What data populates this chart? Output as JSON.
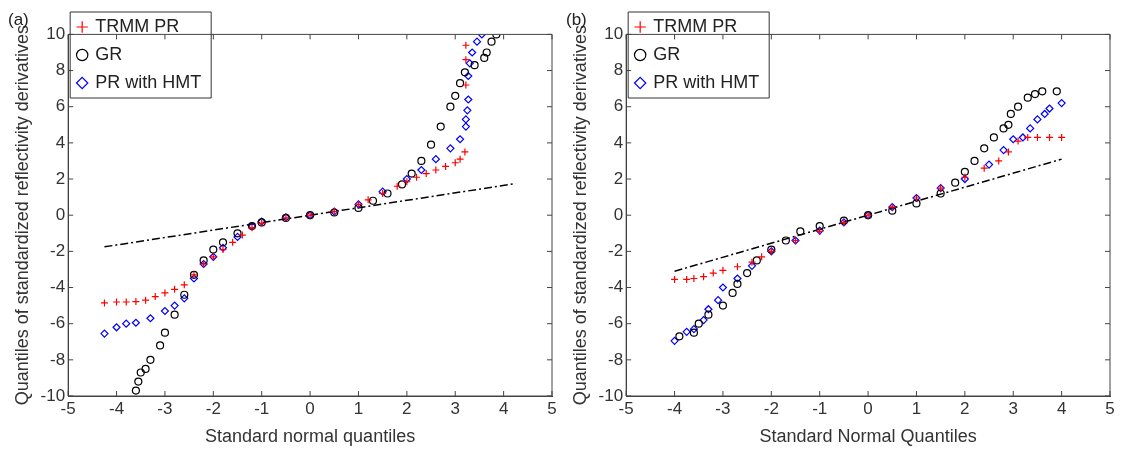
{
  "chart_data": [
    {
      "type": "scatter",
      "title": "(a)",
      "xlabel": "Standard normal quantiles",
      "ylabel": "Quantiles of standardized reflectivity derivatives",
      "xlim": [
        -5,
        5
      ],
      "ylim": [
        -10,
        10
      ],
      "xticks": [
        -5,
        -4,
        -3,
        -2,
        -1,
        0,
        1,
        2,
        3,
        4,
        5
      ],
      "yticks": [
        -10,
        -8,
        -6,
        -4,
        -2,
        0,
        2,
        4,
        6,
        8,
        10
      ],
      "legend": "top left",
      "series": [
        {
          "name": "TRMM PR",
          "type": "scatter",
          "marker": "cross",
          "color": "#ff0000",
          "x": [
            -4.25,
            -4.0,
            -3.8,
            -3.6,
            -3.4,
            -3.2,
            -3.0,
            -2.8,
            -2.6,
            -2.4,
            -2.2,
            -2.0,
            -1.8,
            -1.6,
            -1.4,
            -1.2,
            -1.0,
            -0.5,
            0,
            0.5,
            1.0,
            1.2,
            1.5,
            1.8,
            2.0,
            2.2,
            2.4,
            2.6,
            2.8,
            3.0,
            3.1,
            3.2,
            3.22,
            3.22,
            3.22
          ],
          "values": [
            -4.85,
            -4.8,
            -4.8,
            -4.78,
            -4.7,
            -4.5,
            -4.3,
            -4.1,
            -3.85,
            -3.3,
            -2.7,
            -2.3,
            -1.9,
            -1.5,
            -1.1,
            -0.7,
            -0.45,
            -0.15,
            0,
            0.2,
            0.6,
            0.85,
            1.2,
            1.6,
            1.85,
            2.1,
            2.3,
            2.5,
            2.7,
            2.9,
            3.1,
            3.5,
            7.2,
            8.6,
            9.4
          ]
        },
        {
          "name": "GR",
          "type": "scatter",
          "marker": "circle",
          "color": "#000000",
          "x": [
            -3.6,
            -3.55,
            -3.5,
            -3.4,
            -3.3,
            -3.1,
            -3.0,
            -2.8,
            -2.6,
            -2.4,
            -2.2,
            -2.0,
            -1.8,
            -1.5,
            -1.2,
            -1.0,
            -0.5,
            0,
            0.5,
            1.0,
            1.3,
            1.6,
            1.9,
            2.1,
            2.3,
            2.5,
            2.7,
            2.9,
            3.0,
            3.1,
            3.2,
            3.4,
            3.6,
            3.65,
            3.75,
            3.85
          ],
          "values": [
            -9.7,
            -9.2,
            -8.7,
            -8.5,
            -8.0,
            -7.2,
            -6.5,
            -5.5,
            -4.4,
            -3.3,
            -2.5,
            -1.9,
            -1.5,
            -1.0,
            -0.6,
            -0.4,
            -0.15,
            0,
            0.15,
            0.4,
            0.8,
            1.2,
            1.7,
            2.3,
            3.0,
            3.9,
            4.9,
            6.0,
            6.6,
            7.3,
            7.9,
            8.3,
            8.7,
            9.0,
            9.6,
            10.0
          ]
        },
        {
          "name": "PR with HMT",
          "type": "scatter",
          "marker": "diamond",
          "color": "#0000ff",
          "x": [
            -4.25,
            -4.0,
            -3.8,
            -3.6,
            -3.3,
            -3.0,
            -2.8,
            -2.6,
            -2.4,
            -2.2,
            -2.0,
            -1.8,
            -1.5,
            -1.2,
            -1.0,
            -0.5,
            0,
            0.5,
            1.0,
            1.5,
            2.0,
            2.3,
            2.6,
            2.9,
            3.1,
            3.22,
            3.22,
            3.25,
            3.27,
            3.27,
            3.3,
            3.35,
            3.45,
            3.55
          ],
          "values": [
            -6.55,
            -6.2,
            -6.0,
            -5.95,
            -5.7,
            -5.3,
            -5.0,
            -4.6,
            -3.5,
            -2.7,
            -2.3,
            -1.8,
            -1.2,
            -0.6,
            -0.35,
            -0.12,
            0,
            0.2,
            0.6,
            1.3,
            2.0,
            2.5,
            3.1,
            3.7,
            4.2,
            4.9,
            5.3,
            5.8,
            6.4,
            7.7,
            8.4,
            9.0,
            9.6,
            10.0
          ]
        },
        {
          "type": "line",
          "marker": "none",
          "line_style": "dashed",
          "color": "#000000",
          "x": [
            -4.25,
            4.25
          ],
          "values": [
            -1.75,
            1.75
          ]
        }
      ]
    },
    {
      "type": "scatter",
      "title": "(b)",
      "xlabel": "Standard Normal Quantiles",
      "ylabel": "Quantiles of standardized reflectivity derivatives",
      "xlim": [
        -5,
        5
      ],
      "ylim": [
        -10,
        10
      ],
      "xticks": [
        -5,
        -4,
        -3,
        -2,
        -1,
        0,
        1,
        2,
        3,
        4,
        5
      ],
      "yticks": [
        -10,
        -8,
        -6,
        -4,
        -2,
        0,
        2,
        4,
        6,
        8,
        10
      ],
      "legend": "top left",
      "series": [
        {
          "name": "TRMM PR",
          "type": "scatter",
          "marker": "cross",
          "color": "#ff0000",
          "x": [
            -4.0,
            -3.75,
            -3.6,
            -3.4,
            -3.2,
            -3.0,
            -2.7,
            -2.4,
            -2.2,
            -2.0,
            -1.5,
            -1.0,
            -0.5,
            0,
            0.5,
            1.0,
            1.5,
            2.0,
            2.4,
            2.7,
            2.9,
            3.1,
            3.3,
            3.5,
            3.75,
            4.0
          ],
          "values": [
            -3.55,
            -3.55,
            -3.5,
            -3.4,
            -3.2,
            -3.05,
            -2.85,
            -2.6,
            -2.3,
            -2.0,
            -1.4,
            -0.9,
            -0.4,
            0,
            0.45,
            0.95,
            1.5,
            2.1,
            2.6,
            3.0,
            3.5,
            4.1,
            4.3,
            4.3,
            4.3,
            4.3
          ]
        },
        {
          "name": "GR",
          "type": "scatter",
          "marker": "circle",
          "color": "#000000",
          "x": [
            -3.9,
            -3.6,
            -3.5,
            -3.3,
            -3.0,
            -2.8,
            -2.7,
            -2.5,
            -2.3,
            -2.0,
            -1.7,
            -1.4,
            -1.0,
            -0.5,
            0,
            0.5,
            1.0,
            1.5,
            1.8,
            2.0,
            2.2,
            2.4,
            2.6,
            2.8,
            2.9,
            2.95,
            3.1,
            3.3,
            3.45,
            3.6,
            3.9
          ],
          "values": [
            -6.7,
            -6.5,
            -6.0,
            -5.5,
            -5.0,
            -4.3,
            -3.8,
            -3.2,
            -2.5,
            -1.9,
            -1.4,
            -0.9,
            -0.6,
            -0.3,
            0,
            0.25,
            0.65,
            1.2,
            1.8,
            2.4,
            3.0,
            3.7,
            4.3,
            4.8,
            5.0,
            5.6,
            6.0,
            6.5,
            6.7,
            6.85,
            6.85
          ]
        },
        {
          "name": "PR with HMT",
          "type": "scatter",
          "marker": "diamond",
          "color": "#0000ff",
          "x": [
            -4.0,
            -3.75,
            -3.6,
            -3.4,
            -3.3,
            -3.1,
            -3.0,
            -2.7,
            -2.4,
            -2.0,
            -1.5,
            -1.0,
            -0.5,
            0,
            0.5,
            1.0,
            1.5,
            2.0,
            2.5,
            2.8,
            3.0,
            3.2,
            3.35,
            3.5,
            3.65,
            3.75,
            4.0
          ],
          "values": [
            -6.95,
            -6.45,
            -6.3,
            -5.8,
            -5.2,
            -4.7,
            -4.0,
            -3.5,
            -2.8,
            -2.0,
            -1.4,
            -0.85,
            -0.4,
            0,
            0.45,
            0.95,
            1.5,
            2.0,
            2.8,
            3.6,
            4.2,
            4.3,
            4.8,
            5.3,
            5.6,
            5.9,
            6.2
          ]
        },
        {
          "type": "line",
          "marker": "none",
          "line_style": "dashed",
          "color": "#000000",
          "x": [
            -4,
            4
          ],
          "values": [
            -3.1,
            3.1
          ]
        }
      ]
    }
  ]
}
